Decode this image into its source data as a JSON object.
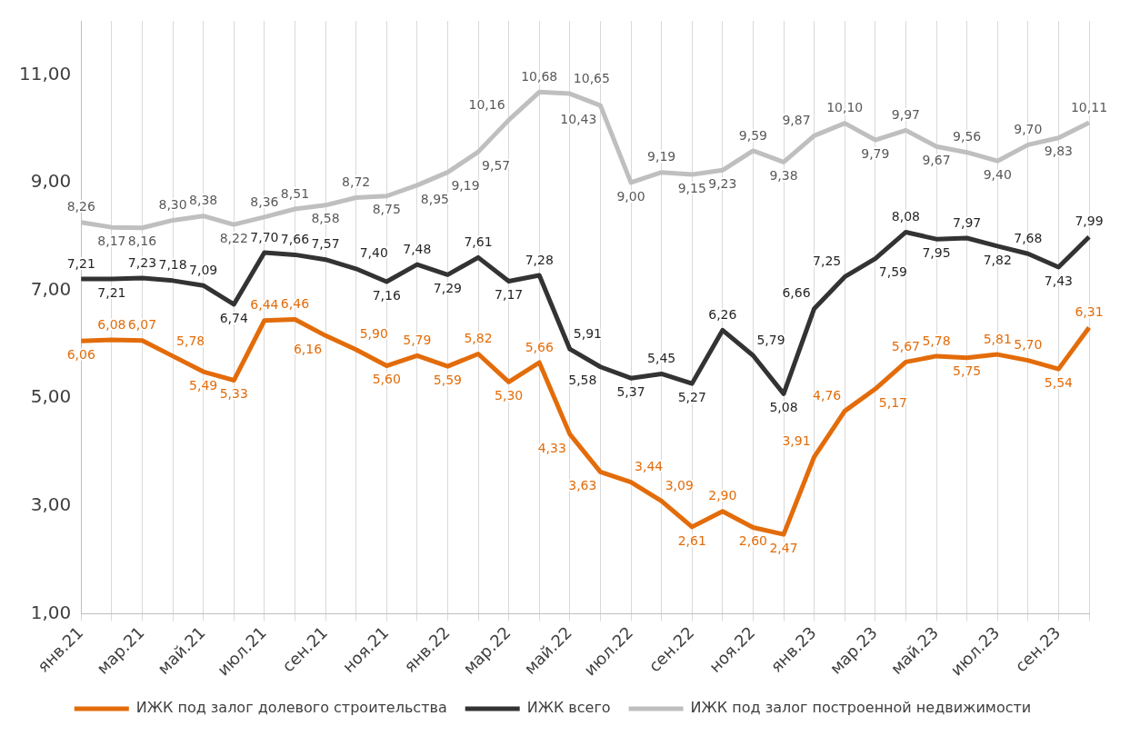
{
  "chart_data": {
    "type": "line",
    "categories": [
      "янв.21",
      null,
      "мар.21",
      null,
      "май.21",
      null,
      "июл.21",
      null,
      "сен.21",
      null,
      "ноя.21",
      null,
      "янв.22",
      null,
      "мар.22",
      null,
      "май.22",
      null,
      "июл.22",
      null,
      "сен.22",
      null,
      "ноя.22",
      null,
      "янв.23",
      null,
      "мар.23",
      null,
      "май.23",
      null,
      "июл.23",
      null,
      "сен.23",
      null
    ],
    "series": [
      {
        "name": "ИЖК под залог долевого строительства",
        "color": "#e36c0a",
        "values": [
          6.06,
          6.08,
          6.07,
          5.78,
          5.49,
          5.33,
          6.44,
          6.46,
          6.16,
          5.9,
          5.6,
          5.79,
          5.59,
          5.82,
          5.3,
          5.66,
          4.33,
          3.63,
          3.44,
          3.09,
          2.61,
          2.9,
          2.6,
          2.47,
          3.91,
          4.76,
          5.17,
          5.67,
          5.78,
          5.75,
          5.81,
          5.7,
          5.54,
          6.31
        ],
        "value_labels": [
          "6,06",
          "6,08",
          "6,07",
          "5,78",
          "5,49",
          "5,33",
          "6,44",
          "6,46",
          "6,16",
          "5,90",
          "5,60",
          "5,79",
          "5,59",
          "5,82",
          "5,30",
          "5,66",
          "4,33",
          "3,63",
          "3,44",
          "3,09",
          "2,61",
          "2,90",
          "2,60",
          "2,47",
          "3,91",
          "4,76",
          "5,17",
          "5,67",
          "5,78",
          "5,75",
          "5,81",
          "5,70",
          "5,54",
          "6,31"
        ]
      },
      {
        "name": "ИЖК всего",
        "color": "#333333",
        "values": [
          7.21,
          7.21,
          7.23,
          7.18,
          7.09,
          6.74,
          7.7,
          7.66,
          7.57,
          7.4,
          7.16,
          7.48,
          7.29,
          7.61,
          7.17,
          7.28,
          5.91,
          5.58,
          5.37,
          5.45,
          5.27,
          6.26,
          5.79,
          5.08,
          6.66,
          7.25,
          7.59,
          8.08,
          7.95,
          7.97,
          7.82,
          7.68,
          7.43,
          7.99
        ],
        "value_labels": [
          "7,21",
          "7,21",
          "7,23",
          "7,18",
          "7,09",
          "6,74",
          "7,70",
          "7,66",
          "7,57",
          "7,40",
          "7,16",
          "7,48",
          "7,29",
          "7,61",
          "7,17",
          "7,28",
          "5,91",
          "5,58",
          "5,37",
          "5,45",
          "5,27",
          "6,26",
          "5,79",
          "5,08",
          "6,66",
          "7,25",
          "7,59",
          "8,08",
          "7,95",
          "7,97",
          "7,82",
          "7,68",
          "7,43",
          "7,99"
        ]
      },
      {
        "name": "ИЖК под залог построенной недвижимости",
        "color": "#bfbfbf",
        "values": [
          8.26,
          8.17,
          8.16,
          8.3,
          8.38,
          8.22,
          8.36,
          8.51,
          8.58,
          8.72,
          8.75,
          8.95,
          9.19,
          9.57,
          10.16,
          10.68,
          10.65,
          10.43,
          9.0,
          9.19,
          9.15,
          9.23,
          9.59,
          9.38,
          9.87,
          10.1,
          9.79,
          9.97,
          9.67,
          9.56,
          9.4,
          9.7,
          9.83,
          10.11
        ],
        "value_labels": [
          "8,26",
          "8,17",
          "8,16",
          "8,30",
          "8,38",
          "8,22",
          "8,36",
          "8,51",
          "8,58",
          "8,72",
          "8,75",
          "8,95",
          "9,19",
          "9,57",
          "10,16",
          "10,68",
          "10,65",
          "10,43",
          "9,00",
          "9,19",
          "9,15",
          "9,23",
          "9,59",
          "9,38",
          "9,87",
          "10,10",
          "9,79",
          "9,97",
          "9,67",
          "9,56",
          "9,40",
          "9,70",
          "9,83",
          "10,11"
        ]
      }
    ],
    "ylim": [
      1,
      12
    ],
    "yticks": [
      {
        "value": 1,
        "label": "1,00"
      },
      {
        "value": 3,
        "label": "3,00"
      },
      {
        "value": 5,
        "label": "5,00"
      },
      {
        "value": 7,
        "label": "7,00"
      },
      {
        "value": 9,
        "label": "9,00"
      },
      {
        "value": 11,
        "label": "11,00"
      }
    ],
    "grid": "x",
    "legend": "bottom",
    "marker": "none",
    "line_style": "solid"
  }
}
